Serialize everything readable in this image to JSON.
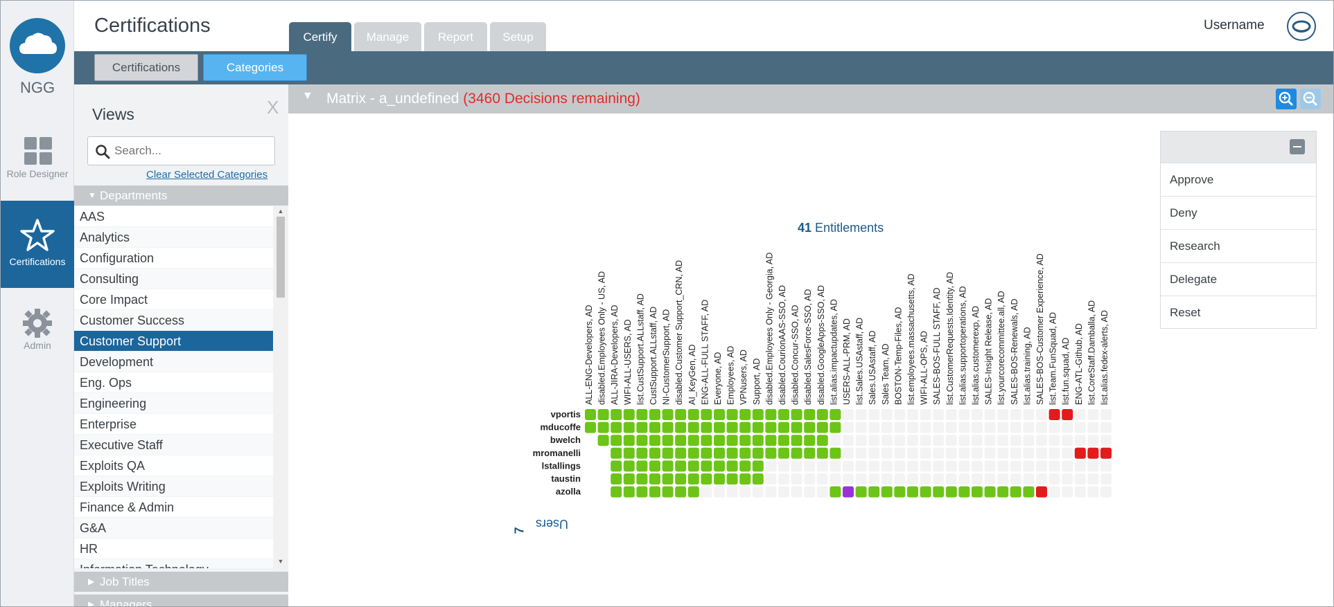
{
  "brand": {
    "name": "NGG"
  },
  "rail": [
    {
      "label": "Role Designer",
      "icon": "grid-icon"
    },
    {
      "label": "Certifications",
      "icon": "star-icon",
      "active": true
    },
    {
      "label": "Admin",
      "icon": "gear-icon"
    }
  ],
  "header": {
    "title": "Certifications",
    "tabs": [
      "Certify",
      "Manage",
      "Report",
      "Setup"
    ],
    "active_tab": "Certify",
    "username": "Username"
  },
  "subnav": {
    "certifications": "Certifications",
    "categories": "Categories"
  },
  "views": {
    "title": "Views",
    "close": "X",
    "search_placeholder": "Search...",
    "clear_link": "Clear Selected Categories",
    "groups": {
      "departments": "Departments",
      "job_titles": "Job Titles",
      "managers": "Managers"
    },
    "departments": [
      "AAS",
      "Analytics",
      "Configuration",
      "Consulting",
      "Core Impact",
      "Customer Success",
      "Customer Support",
      "Development",
      "Eng. Ops",
      "Engineering",
      "Enterprise",
      "Executive Staff",
      "Exploits QA",
      "Exploits Writing",
      "Finance & Admin",
      "G&A",
      "HR",
      "Information Technology"
    ],
    "selected_department": "Customer Support"
  },
  "matrix": {
    "title": "Matrix - a_undefined",
    "remaining": "(3460 Decisions remaining)",
    "entitlements_count": "41",
    "entitlements_label": "Entitlements",
    "users_count": "7",
    "users_label": "Users",
    "colors": {
      "approve": "#6cc417",
      "deny": "#e21b1b",
      "other": "#9b30d9",
      "empty": "#f3f3f3"
    },
    "columns": [
      "ALL-ENG-Developers, AD",
      "disabled.Employees Only - US, AD",
      "ALL-JIRA-Developers, AD",
      "WIFI-ALL-USERS, AD",
      "list.CustSupport.ALLstaff, AD",
      "CustSupport.ALLstaff, AD",
      "NI-CustomerSupport, AD",
      "disabled.Customer Support_CRN, AD",
      "AI_KeyGen, AD",
      "ENG-ALL-FULL STAFF, AD",
      "Everyone, AD",
      "Employees, AD",
      "VPNusers, AD",
      "Support, AD",
      "disabled.Employees Only - Georgia, AD",
      "disabled.CourionAAS-SSO, AD",
      "disabled.Concur-SSO, AD",
      "disabled.SalesForce-SSO, AD",
      "disabled.GoogleApps-SSO, AD",
      "list.alias.impactupdates, AD",
      "USERS-ALL-PRM, AD",
      "list.Sales.USAstaff, AD",
      "Sales.USAstaff, AD",
      "Sales Team, AD",
      "BOSTON-Temp-Files, AD",
      "list.employees.massachusetts, AD",
      "WIFI-ALL-OPS, AD",
      "SALES-BOS-FULL STAFF, AD",
      "list.CustomerRequests.Identity, AD",
      "list.alias.supportoperations, AD",
      "list.alias.customerexp, AD",
      "SALES-Insight Release, AD",
      "list.yourcorecommittee.all, AD",
      "SALES-BOS-Renewals, AD",
      "list.alias.training, AD",
      "SALES-BOS-Customer Experience, AD",
      "list.Team.FunSquad, AD",
      "list.fun.squad, AD",
      "ENG-ATL-Github, AD",
      "list.CoreStaff.Damballa, AD",
      "list.alias.fedex-alerts, AD"
    ],
    "rows": [
      {
        "user": "vportis",
        "cells": "AAAAAAAAAAAAAAAAAAAA................DD..."
      },
      {
        "user": "mducoffe",
        "cells": "AAAAAAAAAAAAAAAAAAAA....................."
      },
      {
        "user": "bwelch",
        "cells": "-AAAAAAAAAAAAAAAAAA......................"
      },
      {
        "user": "mromanelli",
        "cells": "--AAAAAAAAAAAAAAAAAA..................DDD"
      },
      {
        "user": "lstallings",
        "cells": "--AAAAAAAAAAAA..........................."
      },
      {
        "user": "taustin",
        "cells": "--AAAAAAAAAAAA..........................."
      },
      {
        "user": "azolla",
        "cells": "--AAAAAAA..........APAAAAAAAAAAAAAAD....."
      }
    ]
  },
  "actions": [
    "Approve",
    "Deny",
    "Research",
    "Delegate",
    "Reset"
  ]
}
